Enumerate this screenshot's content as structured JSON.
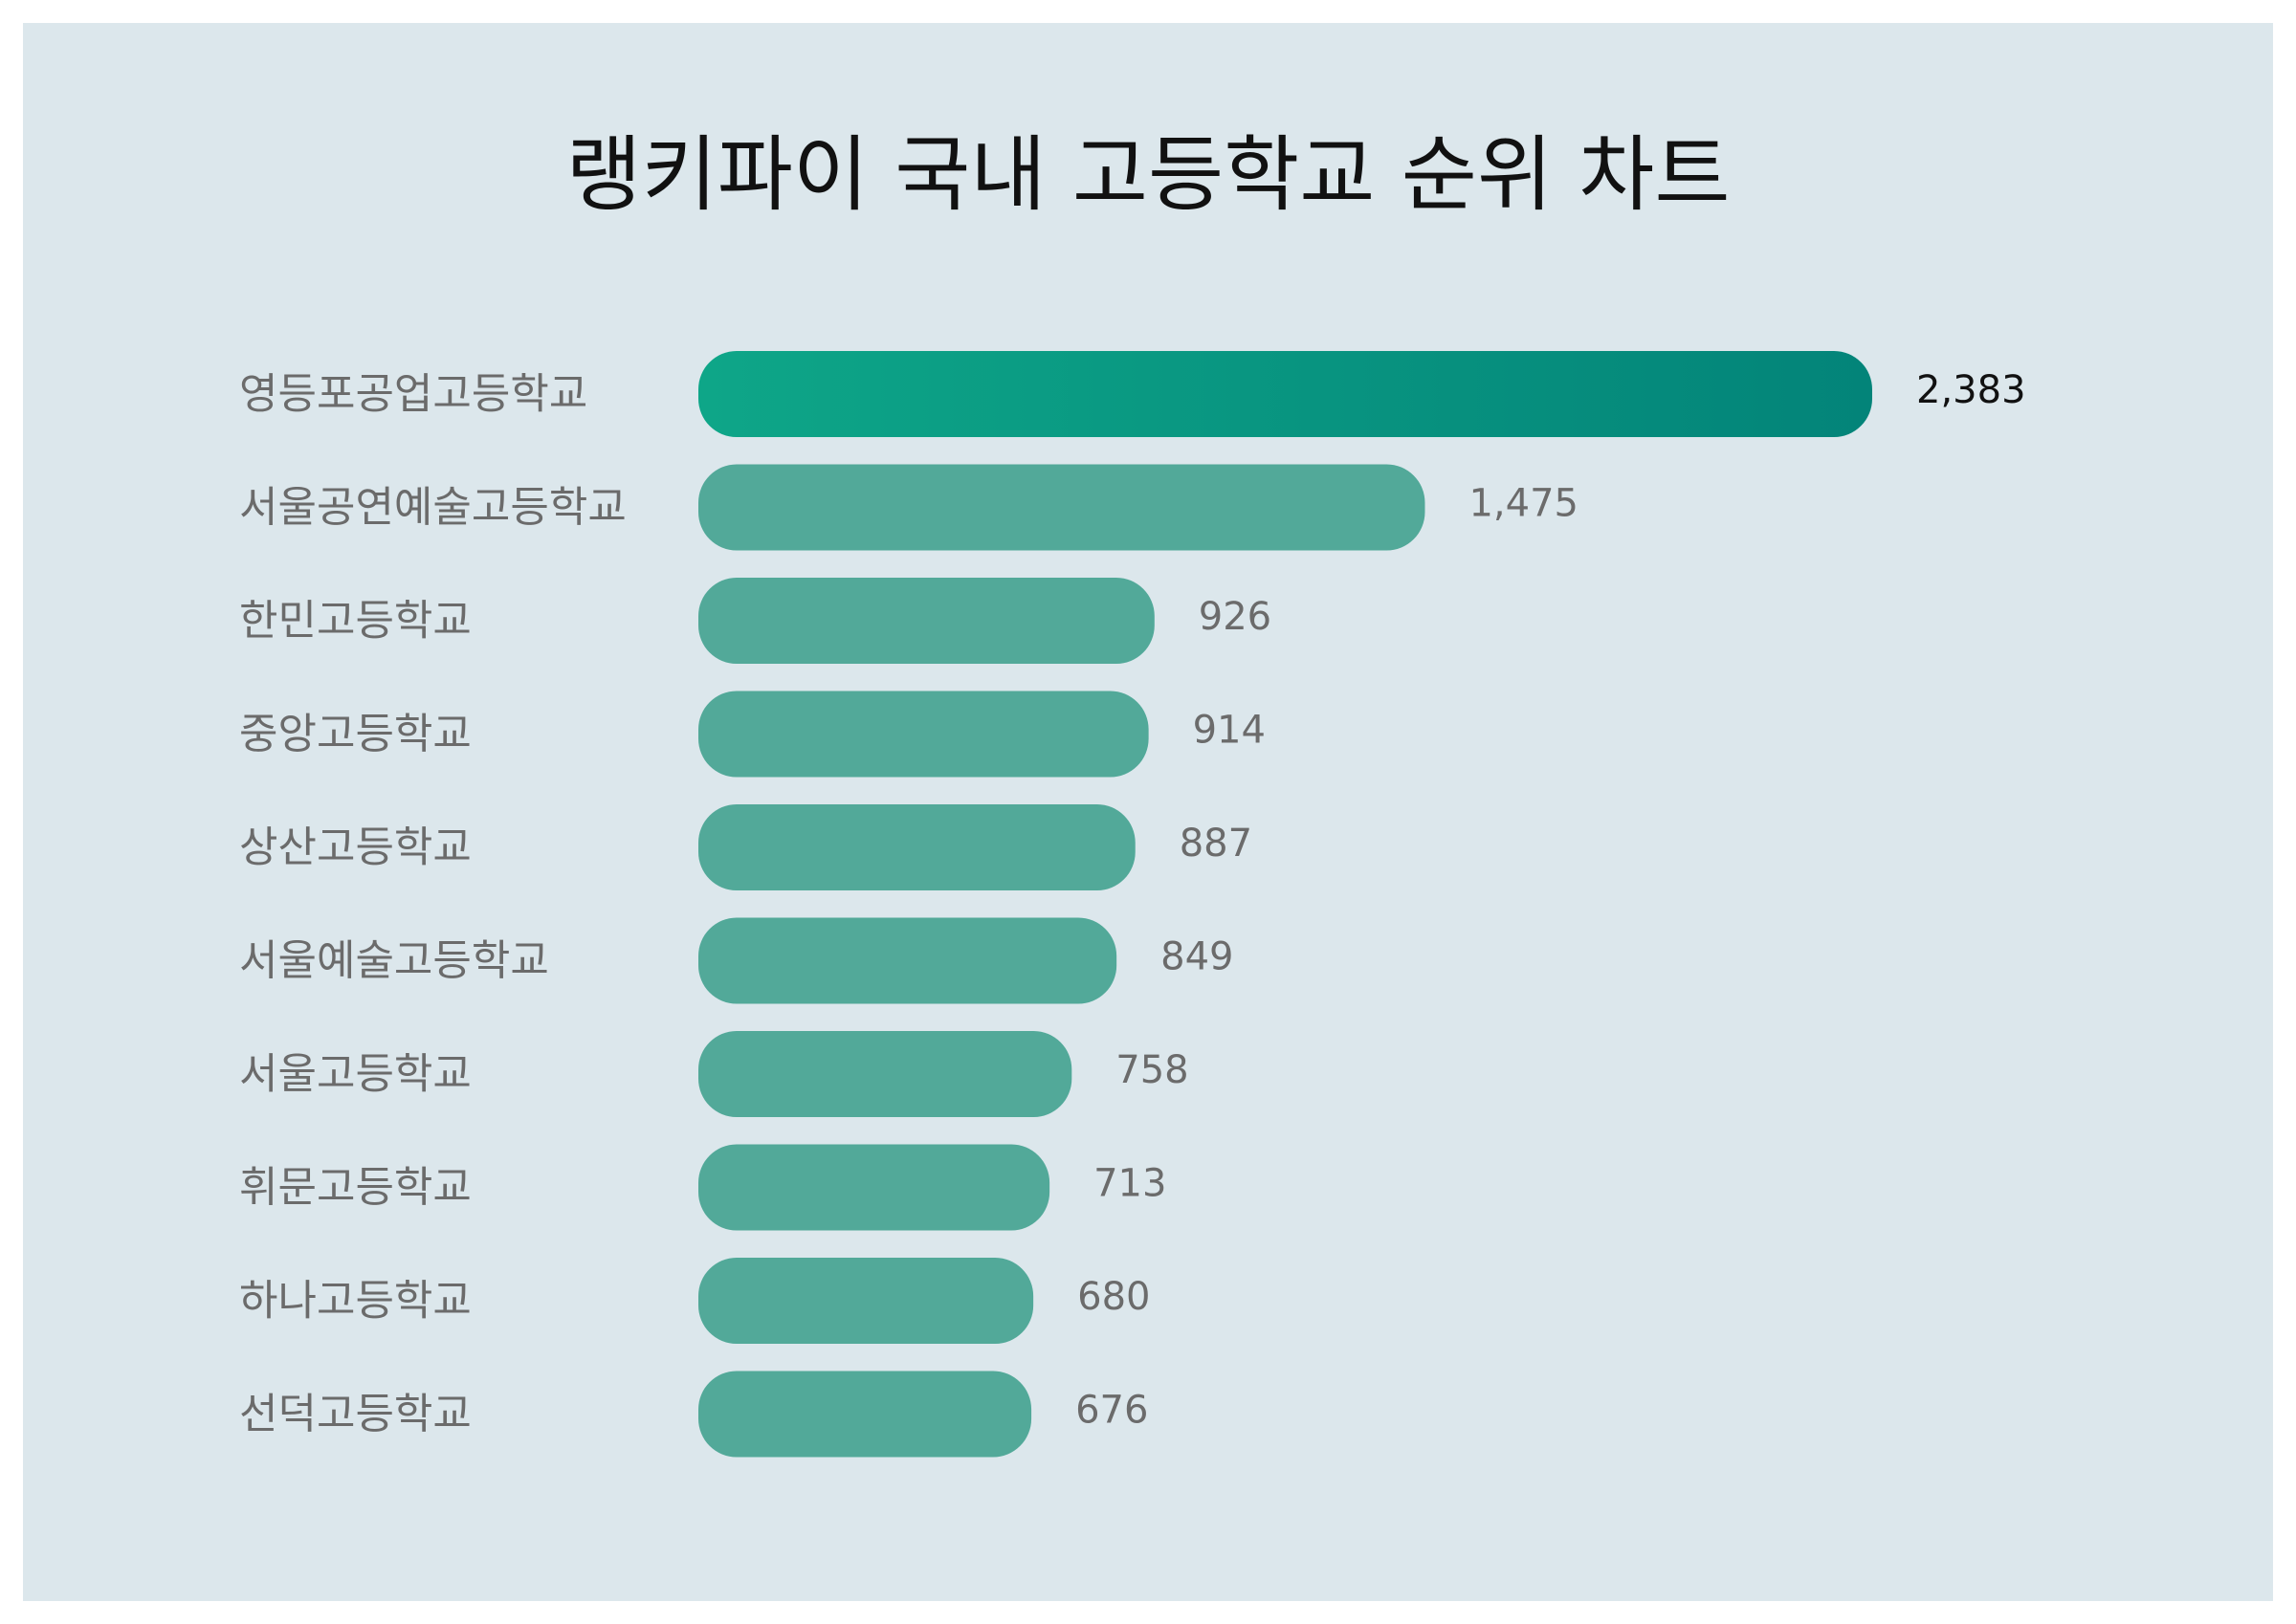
{
  "chart_data": {
    "type": "bar",
    "orientation": "horizontal",
    "title": "랭키파이 국내 고등학교 순위 차트",
    "categories": [
      "영등포공업고등학교",
      "서울공연예술고등학교",
      "한민고등학교",
      "중앙고등학교",
      "상산고등학교",
      "서울예술고등학교",
      "서울고등학교",
      "휘문고등학교",
      "하나고등학교",
      "선덕고등학교"
    ],
    "values": [
      2383,
      1475,
      926,
      914,
      887,
      849,
      758,
      713,
      680,
      676
    ],
    "value_labels": [
      "2,383",
      "1,475",
      "926",
      "914",
      "887",
      "849",
      "758",
      "713",
      "680",
      "676"
    ],
    "grid": false,
    "legend": "none"
  },
  "colors": {
    "background": "#dce7ec",
    "bar": "#52a999",
    "top_bar_start": "#0ea688",
    "top_bar_end": "#038479",
    "label": "#6b6b6b",
    "title": "#111111"
  }
}
